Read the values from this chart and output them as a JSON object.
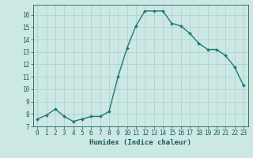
{
  "x": [
    0,
    1,
    2,
    3,
    4,
    5,
    6,
    7,
    8,
    9,
    10,
    11,
    12,
    13,
    14,
    15,
    16,
    17,
    18,
    19,
    20,
    21,
    22,
    23
  ],
  "y": [
    7.6,
    7.9,
    8.4,
    7.8,
    7.4,
    7.6,
    7.8,
    7.8,
    8.2,
    11.0,
    13.3,
    15.1,
    16.3,
    16.3,
    16.3,
    15.3,
    15.1,
    14.5,
    13.7,
    13.2,
    13.2,
    12.7,
    11.8,
    10.3
  ],
  "xlabel": "Humidex (Indice chaleur)",
  "xlim": [
    -0.5,
    23.5
  ],
  "ylim": [
    7.0,
    16.8
  ],
  "yticks": [
    7,
    8,
    9,
    10,
    11,
    12,
    13,
    14,
    15,
    16
  ],
  "xticks": [
    0,
    1,
    2,
    3,
    4,
    5,
    6,
    7,
    8,
    9,
    10,
    11,
    12,
    13,
    14,
    15,
    16,
    17,
    18,
    19,
    20,
    21,
    22,
    23
  ],
  "line_color": "#1e7a70",
  "marker": "D",
  "marker_size": 2.0,
  "bg_color": "#cce8e4",
  "grid_color": "#aacfca",
  "axis_color": "#1e5c55",
  "xlabel_fontsize": 6.5,
  "tick_fontsize": 5.5,
  "line_width": 1.0
}
